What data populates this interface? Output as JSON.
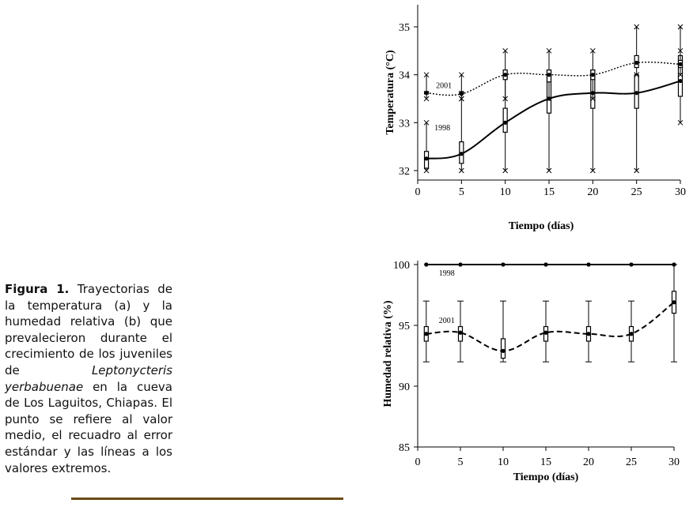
{
  "caption": {
    "label": "Figura 1.",
    "part1": " Trayectorias de la temperatura (a) y la humedad relativa (b) que prevalecieron durante el crecimiento de los juveniles de ",
    "species": "Leptonycteris yerbabuenae",
    "part2": " en la cueva de Los Laguitos, Chiapas. El punto se refiere al valor medio, el recuadro al error estándar y las líneas a los valores extremos."
  },
  "chart_data": [
    {
      "type": "line",
      "xlabel": "Tiempo (días)",
      "ylabel": "Temperatura (°C)",
      "xlim": [
        0,
        30
      ],
      "ylim": [
        31.7,
        35.5
      ],
      "xticks": [
        "0",
        "5",
        "10",
        "15",
        "20",
        "25",
        "30"
      ],
      "yticks": [
        "32",
        "33",
        "34",
        "35"
      ],
      "x": [
        1,
        5,
        10,
        15,
        20,
        25,
        30
      ],
      "series": [
        {
          "name": "1998",
          "line_style": "solid",
          "mean": [
            32.25,
            32.35,
            33.0,
            33.5,
            33.62,
            33.62,
            33.87
          ],
          "box_low": [
            32.05,
            32.15,
            32.8,
            33.2,
            33.3,
            33.3,
            33.55
          ],
          "box_high": [
            32.4,
            32.6,
            33.3,
            34.1,
            34.1,
            34.0,
            34.4
          ],
          "min": [
            32.0,
            32.0,
            32.0,
            32.0,
            32.0,
            32.0,
            33.0
          ],
          "max": [
            33.0,
            33.5,
            34.0,
            34.0,
            34.0,
            34.0,
            34.5
          ]
        },
        {
          "name": "2001",
          "line_style": "dotted",
          "mean": [
            33.62,
            33.6,
            34.0,
            34.0,
            34.0,
            34.25,
            34.22
          ],
          "box_low": [
            33.6,
            33.6,
            33.9,
            33.85,
            33.9,
            34.15,
            34.15
          ],
          "box_high": [
            33.65,
            33.65,
            34.1,
            34.1,
            34.1,
            34.4,
            34.3
          ],
          "min": [
            33.5,
            33.5,
            33.5,
            33.5,
            33.5,
            34.0,
            34.0
          ],
          "max": [
            34.0,
            34.0,
            34.5,
            34.5,
            34.5,
            35.0,
            35.0
          ]
        }
      ]
    },
    {
      "type": "line",
      "xlabel": "Tiempo (días)",
      "ylabel": "Humedad relativa (%)",
      "xlim": [
        0,
        30
      ],
      "ylim": [
        85,
        100
      ],
      "xticks": [
        "0",
        "5",
        "10",
        "15",
        "20",
        "25",
        "30"
      ],
      "yticks": [
        "85",
        "90",
        "95",
        "100"
      ],
      "x": [
        1,
        5,
        10,
        15,
        20,
        25,
        30
      ],
      "series": [
        {
          "name": "1998",
          "line_style": "solid",
          "mean": [
            100,
            100,
            100,
            100,
            100,
            100,
            100
          ]
        },
        {
          "name": "2001",
          "line_style": "dashed",
          "mean": [
            94.3,
            94.4,
            92.9,
            94.4,
            94.3,
            94.3,
            96.9
          ],
          "box_low": [
            93.7,
            93.7,
            92.3,
            93.7,
            93.7,
            93.7,
            96.0
          ],
          "box_high": [
            94.9,
            94.9,
            93.9,
            94.9,
            94.9,
            94.9,
            97.8
          ],
          "min": [
            92.0,
            92.0,
            92.0,
            92.0,
            92.0,
            92.0,
            92.0
          ],
          "max": [
            97.0,
            97.0,
            97.0,
            97.0,
            97.0,
            97.0,
            100.0
          ]
        }
      ]
    }
  ]
}
